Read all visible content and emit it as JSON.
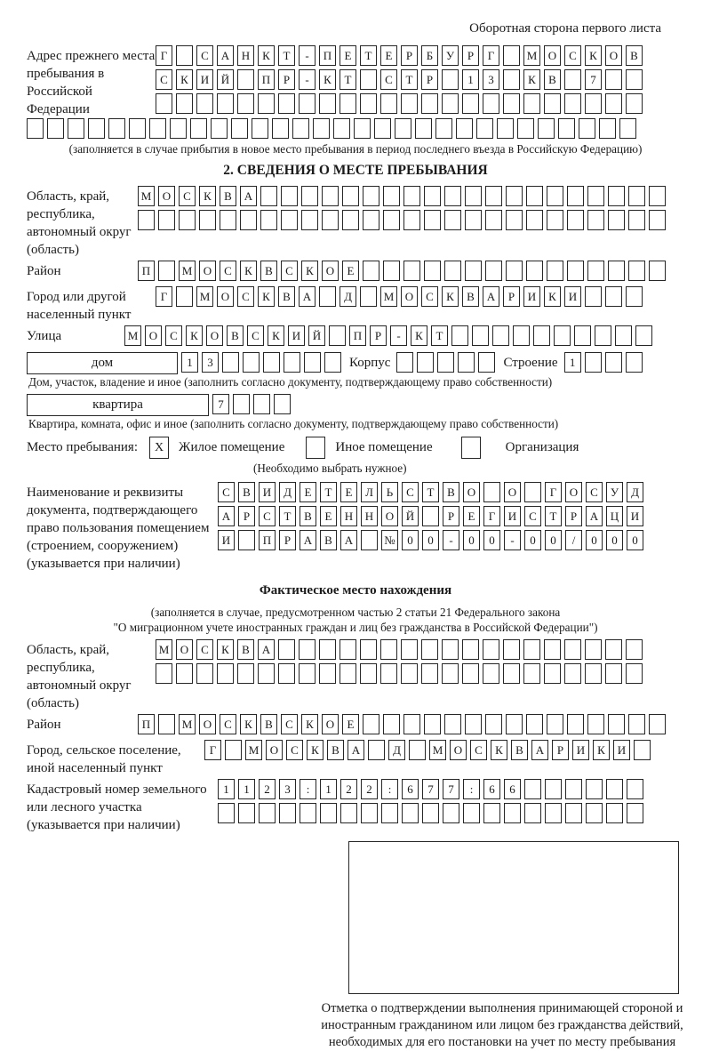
{
  "page": {
    "corner_note": "Оборотная сторона первого листа",
    "ink_color": "#1b1b1b"
  },
  "prev_address": {
    "label": "Адрес прежнего места пребывания в Российской Федерации",
    "rows": [
      "Г САНКТ-ПЕТЕРБУРГ МОСКОВ",
      "СКИЙ ПР-КТ СТР 13 КВ 7",
      ""
    ],
    "extra_row": "",
    "note": "(заполняется в случае прибытия в новое место пребывания в период последнего въезда в Российскую Федерацию)"
  },
  "section2": {
    "title": "2. СВЕДЕНИЯ О МЕСТЕ ПРЕБЫВАНИЯ",
    "region": {
      "label": "Область, край, республика, автономный округ (область)",
      "rows": [
        "МОСКВА",
        ""
      ]
    },
    "district": {
      "label": "Район",
      "value": "П МОСКВСКОЕ"
    },
    "city": {
      "label": "Город или другой населенный пункт",
      "value": "Г МОСКВА Д МОСКВАРИКИ"
    },
    "street": {
      "label": "Улица",
      "value": "МОСКОВСКИЙ ПР-КТ"
    },
    "house": {
      "box_label": "дом",
      "value": "13",
      "korpus_label": "Корпус",
      "korpus_value": "",
      "stroenie_label": "Строение",
      "stroenie_value": "1",
      "note": "Дом, участок, владение и иное (заполнить согласно документу, подтверждающему право собственности)"
    },
    "apartment": {
      "box_label": "квартира",
      "value": "7",
      "note": "Квартира, комната, офис и иное (заполнить согласно документу, подтверждающему право собственности)"
    },
    "stay_type": {
      "label": "Место пребывания:",
      "checked_mark": "X",
      "options": [
        {
          "label": "Жилое помещение",
          "checked": true
        },
        {
          "label": "Иное помещение",
          "checked": false
        },
        {
          "label": "Организация",
          "checked": false
        }
      ],
      "note": "(Необходимо выбрать нужное)"
    },
    "doc": {
      "label": "Наименование и реквизиты документа, подтверждающего право пользования помещением (строением, сооружением) (указывается при наличии)",
      "rows": [
        "СВИДЕТЕЛЬСТВО О ГОСУД",
        "АРСТВЕННОЙ РЕГИСТРАЦИ",
        "И ПРАВА №00-00-00/000"
      ]
    }
  },
  "actual_location": {
    "title": "Фактическое место нахождения",
    "note1": "(заполняется в случае, предусмотренном частью 2 статьи 21 Федерального закона",
    "note2": "\"О миграционном учете иностранных граждан и лиц без гражданства в Российской Федерации\")",
    "region": {
      "label": "Область, край, республика, автономный округ (область)",
      "rows": [
        "МОСКВА",
        ""
      ]
    },
    "district": {
      "label": "Район",
      "value": "П МОСКВСКОЕ"
    },
    "city": {
      "label": "Город, сельское поселение, иной населенный пункт",
      "value": "Г МОСКВА Д МОСКВАРИКИ"
    },
    "cadastral": {
      "label": "Кадастровый номер земельного или лесного участка (указывается при наличии)",
      "rows": [
        "1123:122:677:66",
        ""
      ]
    }
  },
  "stamp": {
    "caption": "Отметка о подтверждении выполнения принимающей стороной и иностранным гражданином или лицом без гражданства действий, необходимых для его постановки на учет по месту пребывания"
  }
}
